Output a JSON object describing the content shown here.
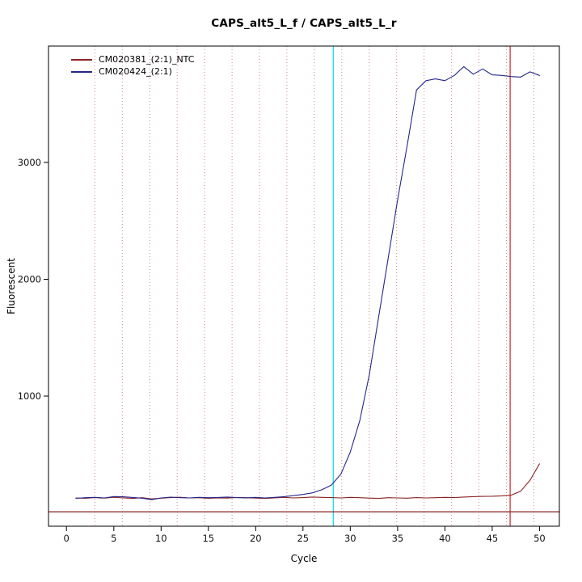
{
  "chart_data": {
    "type": "line",
    "title": "CAPS_alt5_L_f / CAPS_alt5_L_r",
    "xlabel": "Cycle",
    "ylabel": "Fluorescent",
    "x_range": [
      -1.9,
      52.1
    ],
    "y_range": [
      -114,
      3996
    ],
    "x_ticks": [
      0,
      5,
      10,
      15,
      20,
      25,
      30,
      35,
      40,
      45,
      50
    ],
    "y_ticks": [
      1000,
      2000,
      3000
    ],
    "grid_on": true,
    "grid_color": "#cc8888",
    "grid_x_dotted": [
      3.0,
      5.9,
      8.8,
      11.7,
      14.6,
      17.5,
      20.4,
      23.3,
      26.2,
      29.1,
      32.0,
      34.9,
      37.8,
      40.7,
      43.6,
      46.5,
      49.4
    ],
    "legend_position": "top-left",
    "x": [
      1,
      2,
      3,
      4,
      5,
      6,
      7,
      8,
      9,
      10,
      11,
      12,
      13,
      14,
      15,
      16,
      17,
      18,
      19,
      20,
      21,
      22,
      23,
      24,
      25,
      26,
      27,
      28,
      29,
      30,
      31,
      32,
      33,
      34,
      35,
      36,
      37,
      38,
      39,
      40,
      41,
      42,
      43,
      44,
      45,
      46,
      47,
      48,
      49,
      50
    ],
    "series": [
      {
        "name": "CM020381_(2:1)_NTC",
        "color": "#8b2323",
        "values": [
          128,
          125,
          131,
          127,
          134,
          128,
          124,
          130,
          120,
          126,
          131,
          134,
          128,
          130,
          125,
          129,
          127,
          132,
          130,
          127,
          124,
          129,
          133,
          128,
          131,
          136,
          133,
          131,
          128,
          133,
          130,
          127,
          124,
          130,
          128,
          126,
          131,
          128,
          130,
          133,
          131,
          136,
          139,
          141,
          143,
          146,
          152,
          185,
          280,
          420
        ]
      },
      {
        "name": "CM020424_(2:1)",
        "color": "#26268c",
        "values": [
          125,
          130,
          133,
          128,
          140,
          138,
          132,
          126,
          113,
          128,
          135,
          130,
          128,
          133,
          130,
          132,
          136,
          131,
          129,
          133,
          128,
          133,
          139,
          148,
          158,
          172,
          198,
          238,
          330,
          520,
          790,
          1180,
          1680,
          2180,
          2680,
          3140,
          3620,
          3700,
          3715,
          3700,
          3745,
          3820,
          3755,
          3800,
          3750,
          3745,
          3735,
          3730,
          3775,
          3745
        ]
      }
    ],
    "vlines": [
      {
        "x": 28.2,
        "color": "#00dcdc",
        "label": "threshold-cycle-line"
      },
      {
        "x": 46.9,
        "color": "#cd2626",
        "label": "cutoff-cycle-line"
      }
    ],
    "hlines": [
      {
        "y": 10,
        "color": "#8b2323",
        "label": "baseline-threshold-line"
      }
    ]
  }
}
